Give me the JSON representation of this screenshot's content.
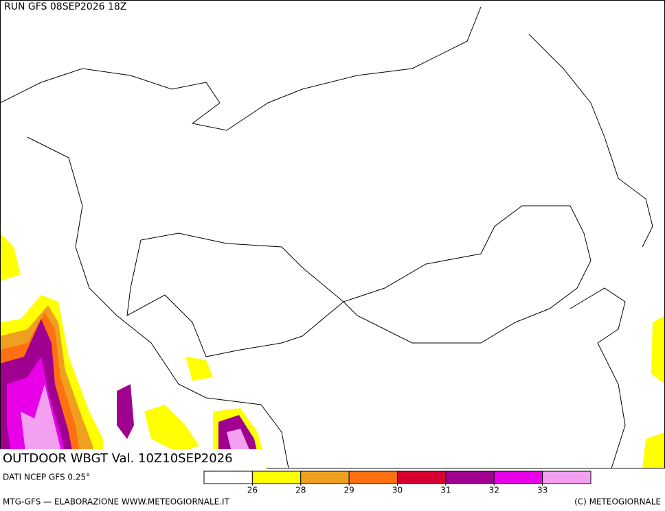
{
  "header": {
    "run": "RUN GFS 08SEP2026 18Z"
  },
  "map": {
    "title": "OUTDOOR WBGT Val. 10Z10SEP2026"
  },
  "legend": {
    "source": "DATI NCEP GFS 0.25°",
    "colors": [
      "#ffffff",
      "#ffff00",
      "#f0a020",
      "#ff7010",
      "#d80030",
      "#a00090",
      "#e800e8",
      "#f4a0f0"
    ],
    "ticks": [
      26,
      28,
      29,
      30,
      31,
      32,
      33
    ]
  },
  "footer": {
    "left": "MTG-GFS — ELABORAZIONE WWW.METEOGIORNALE.IT",
    "right": "(C) METEOGIORNALE"
  }
}
